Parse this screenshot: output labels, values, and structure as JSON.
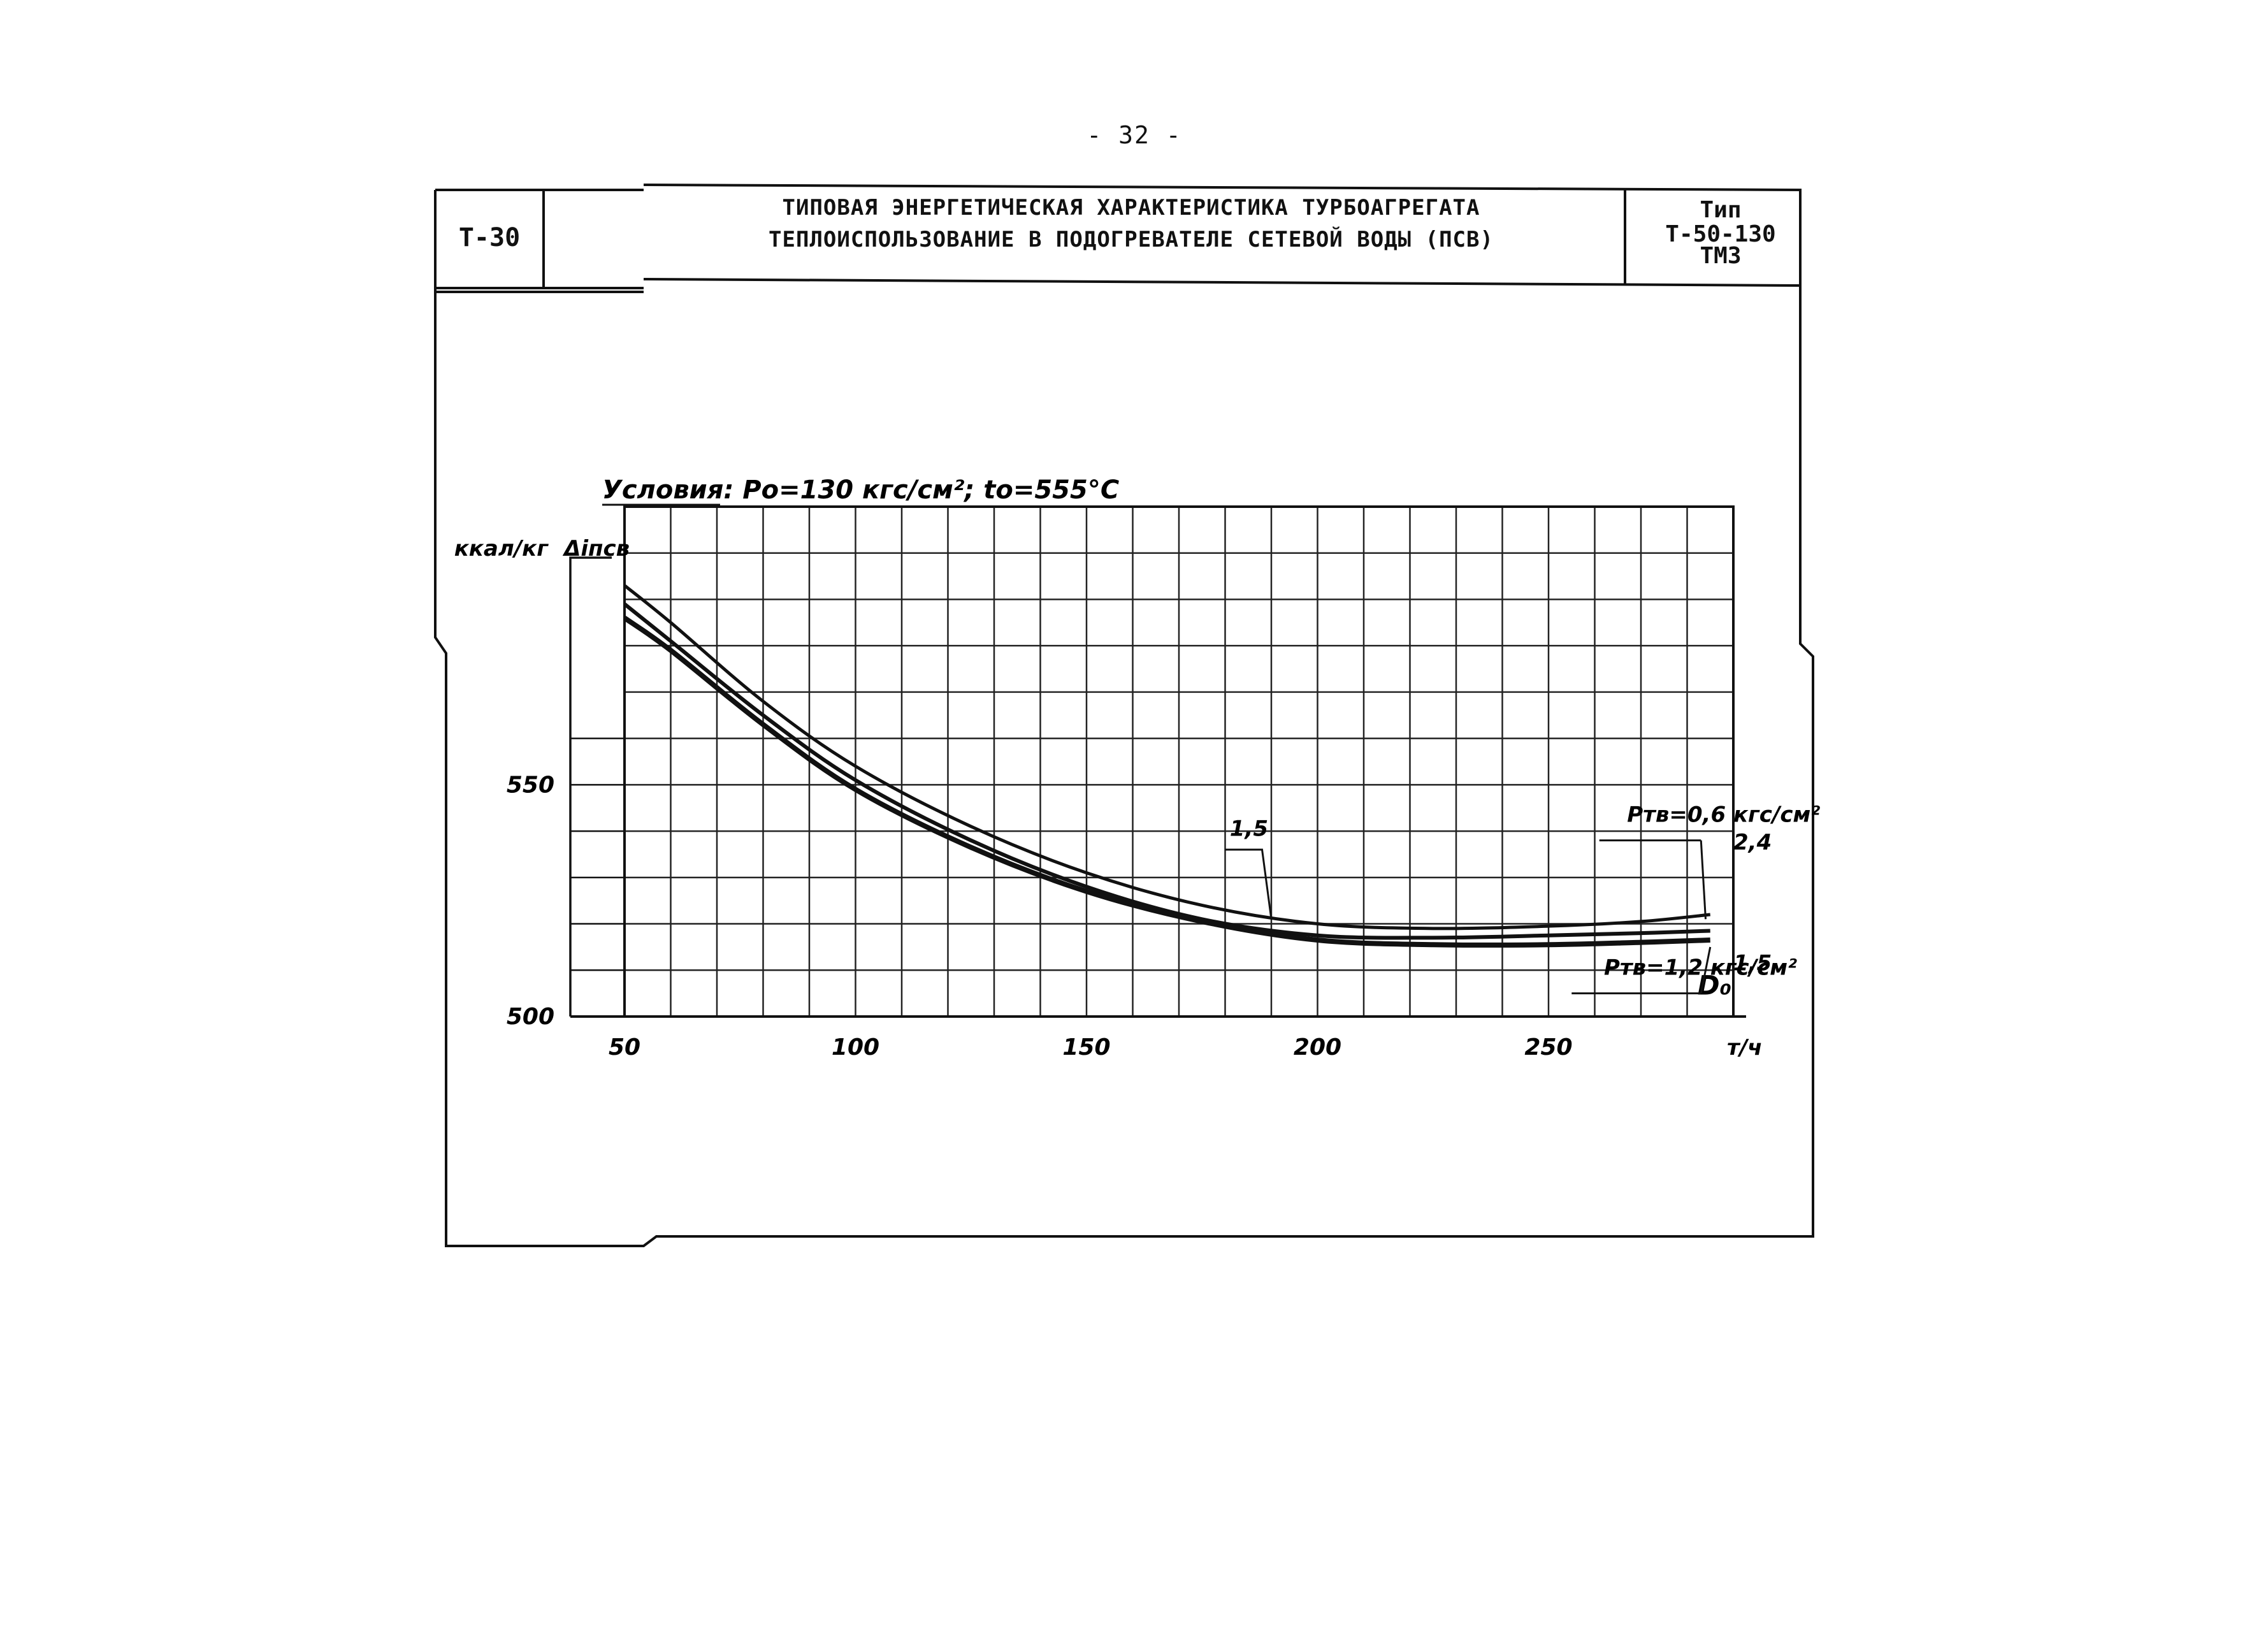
{
  "page_number": "- 32 -",
  "header": {
    "code": "Т-30",
    "title_line1": "ТИПОВАЯ ЭНЕРГЕТИЧЕСКАЯ ХАРАКТЕРИСТИКА ТУРБОАГРЕГАТА",
    "title_line2": "ТЕПЛОИСПОЛЬЗОВАНИЕ В ПОДОГРЕВАТЕЛЕ СЕТЕВОЙ ВОДЫ (ПСВ)",
    "type_line1": "Тип",
    "type_line2": "Т-50-130",
    "type_line3": "ТМЗ"
  },
  "chart_data": {
    "type": "line",
    "conditions": "Условия: Pо=130 кгс/см²; tо=555°C",
    "ylabel_unit": "ккал/кг",
    "ylabel": "Δiпсв",
    "xlabel": "D₀",
    "xunit": "т/ч",
    "xlim": [
      50,
      290
    ],
    "ylim": [
      500,
      610
    ],
    "x_ticks": [
      50,
      100,
      150,
      200,
      250
    ],
    "y_ticks": [
      500,
      550
    ],
    "grid": true,
    "series": [
      {
        "name": "2,4",
        "x": [
          50,
          60,
          80,
          100,
          125,
          150,
          175,
          200,
          225,
          250,
          270,
          285
        ],
        "y": [
          593,
          585,
          568,
          554,
          541,
          531,
          524,
          520,
          519,
          519.5,
          520.5,
          522
        ]
      },
      {
        "name": "1,5",
        "x": [
          50,
          60,
          80,
          100,
          125,
          150,
          175,
          200,
          225,
          250,
          270,
          285
        ],
        "y": [
          589,
          581,
          565,
          551,
          538,
          528,
          521,
          517.5,
          517,
          517.5,
          518,
          518.5
        ]
      },
      {
        "name": "1,5",
        "x": [
          50,
          60,
          80,
          100,
          125,
          150,
          175,
          200,
          225,
          250,
          270,
          285
        ],
        "y": [
          586,
          579,
          563,
          549,
          536.5,
          527,
          520.5,
          516.5,
          515.5,
          515.5,
          516,
          516.5
        ]
      }
    ],
    "annotations": [
      {
        "text": "1,5",
        "x": 181,
        "y": 539
      },
      {
        "text": "Pтв=0,6 кгс/см²",
        "x": 267,
        "y": 542
      },
      {
        "text": "Pтв=1,2 кгс/см²",
        "x": 262,
        "y": 509
      },
      {
        "text": "2,4",
        "x": 290,
        "y": 536
      },
      {
        "text": "1,5",
        "x": 290,
        "y": 510
      }
    ]
  }
}
